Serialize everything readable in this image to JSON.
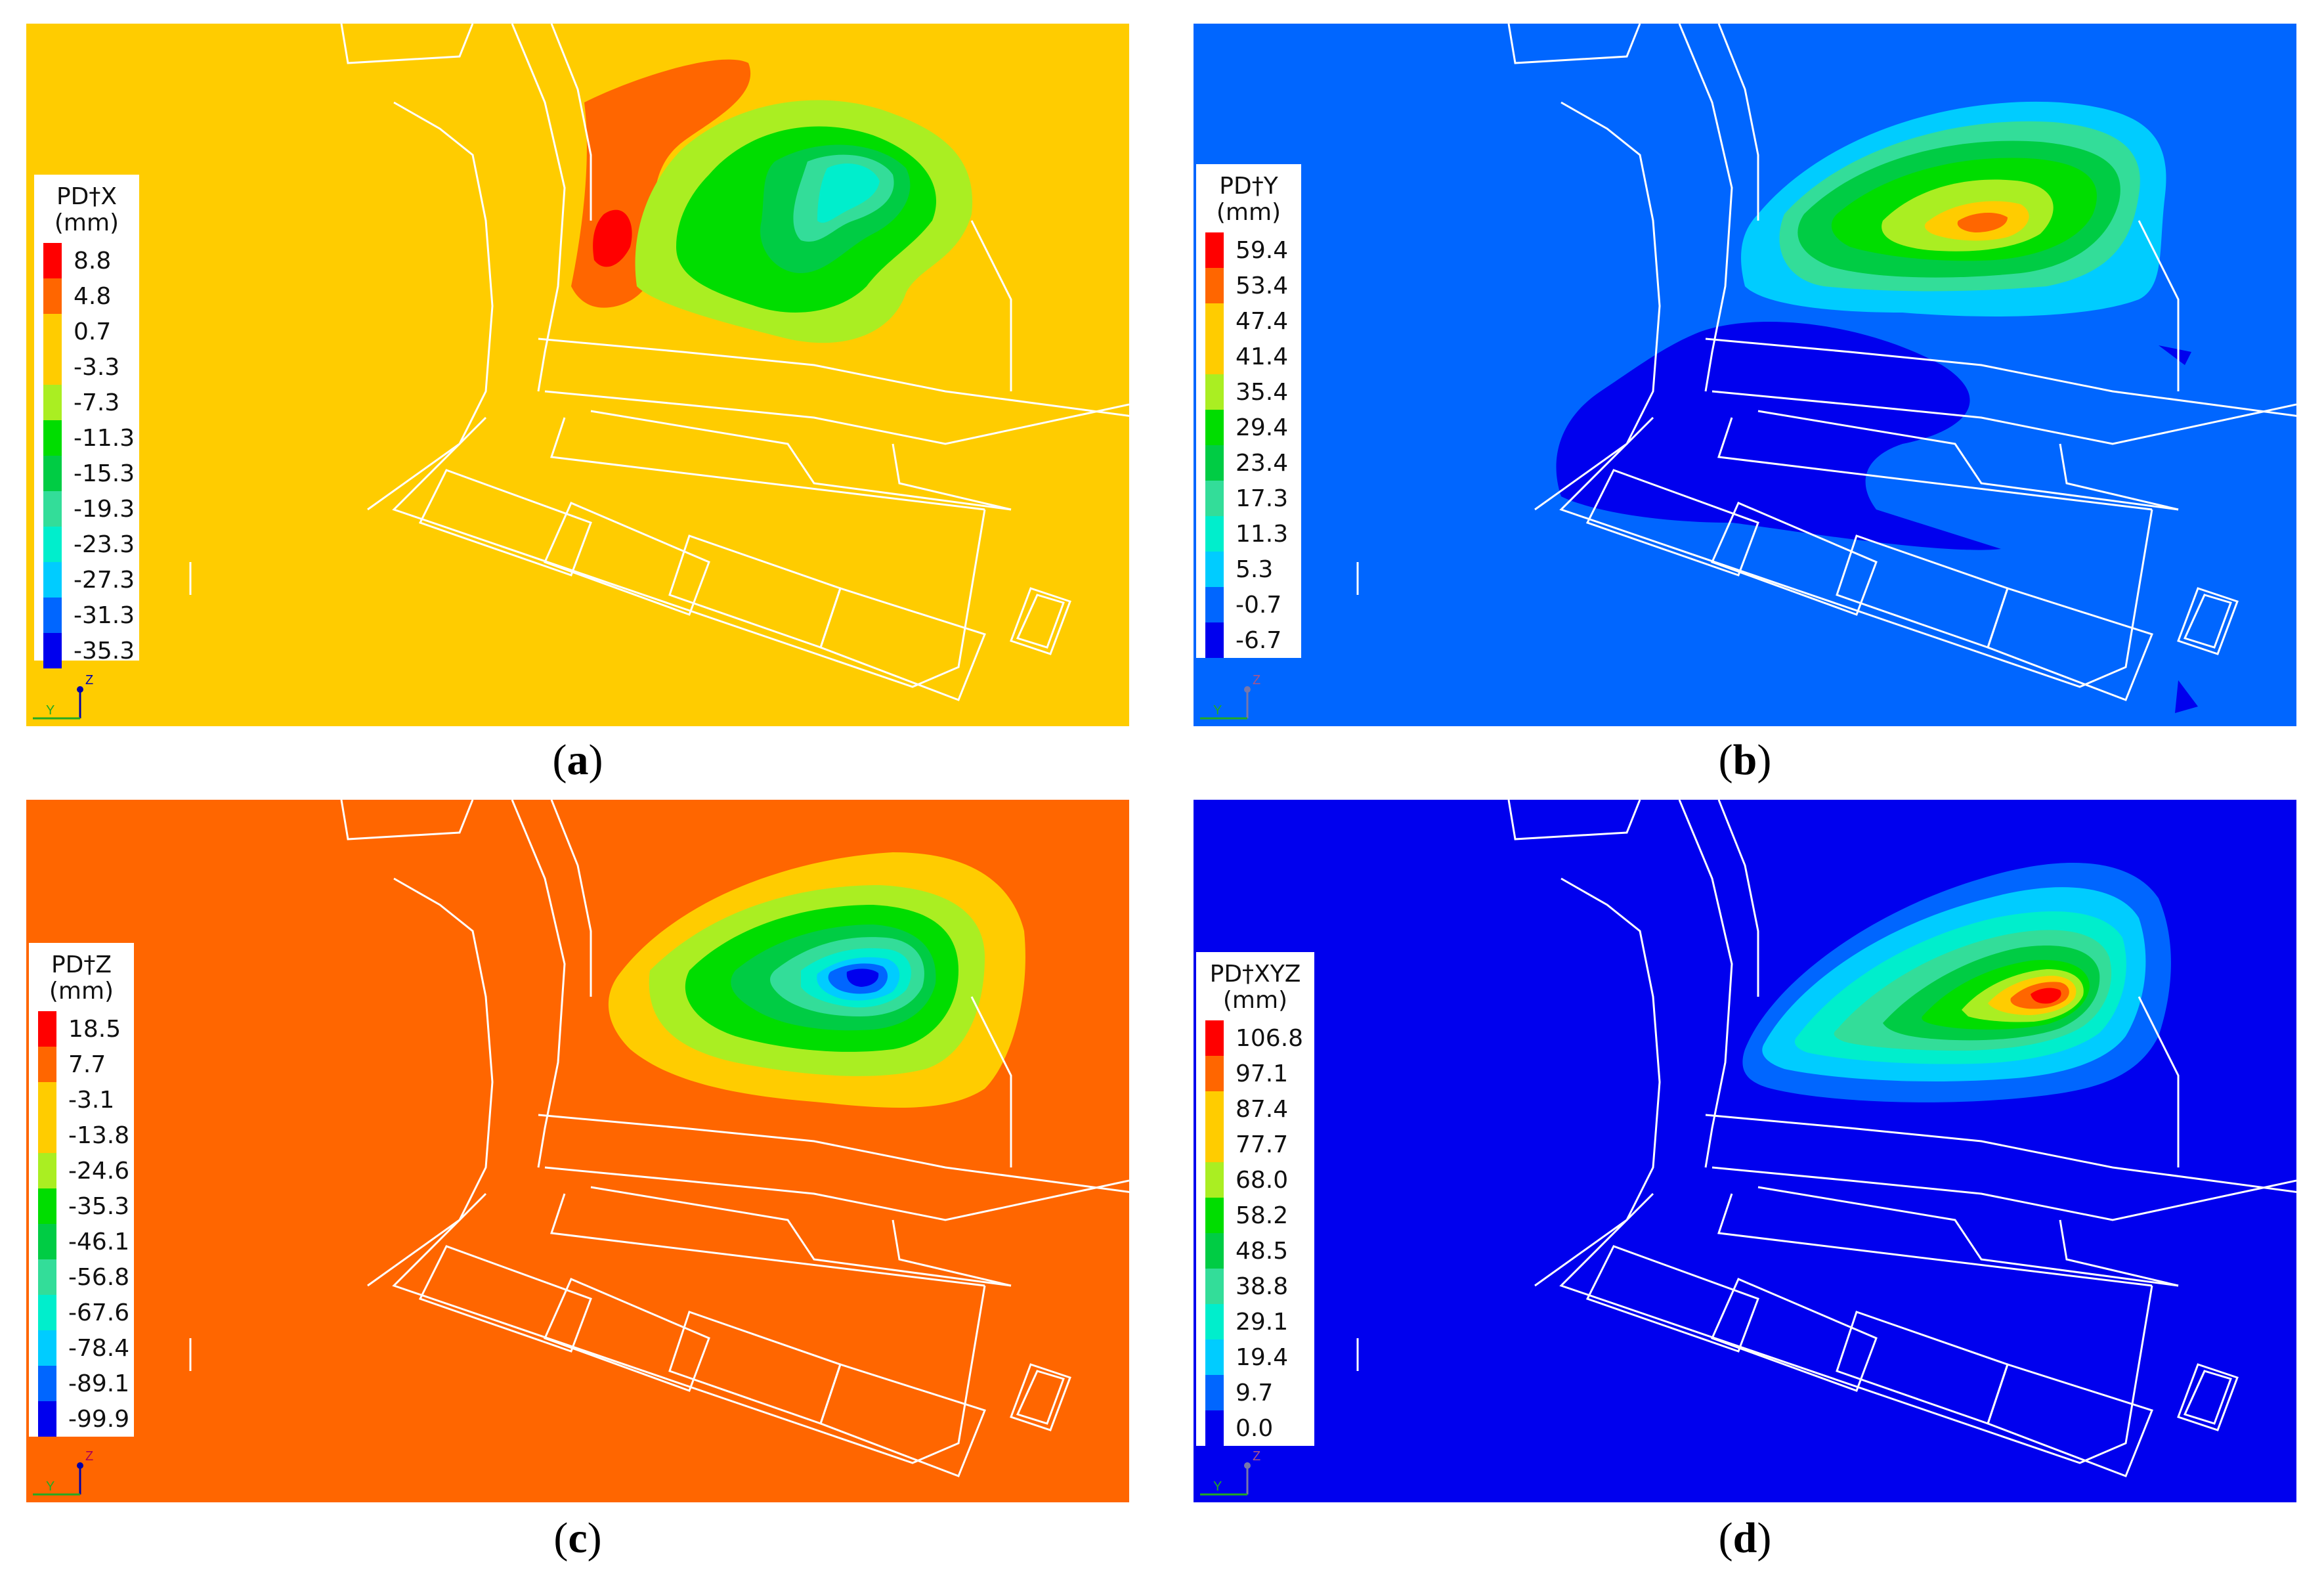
{
  "panels": [
    {
      "id": "a",
      "caption_letter": "a",
      "background": "#FFCC00",
      "legend": {
        "title": "PD†X",
        "unit": "(mm)",
        "values": [
          "8.8",
          "4.8",
          "0.7",
          "-3.3",
          "-7.3",
          "-11.3",
          "-15.3",
          "-19.3",
          "-23.3",
          "-27.3",
          "-31.3",
          "-35.3"
        ],
        "colors": [
          "#FF0000",
          "#FF6600",
          "#FFCC00",
          "#FFCC00",
          "#AAEE22",
          "#00DD00",
          "#00CC44",
          "#33DD99",
          "#00EECC",
          "#00CCFF",
          "#0066FF",
          "#0000EE"
        ]
      }
    },
    {
      "id": "b",
      "caption_letter": "b",
      "background": "#0066FF",
      "legend": {
        "title": "PD†Y",
        "unit": "(mm)",
        "values": [
          "59.4",
          "53.4",
          "47.4",
          "41.4",
          "35.4",
          "29.4",
          "23.4",
          "17.3",
          "11.3",
          "5.3",
          "-0.7",
          "-6.7"
        ],
        "colors": [
          "#FF0000",
          "#FF6600",
          "#FFCC00",
          "#FFCC00",
          "#AAEE22",
          "#00DD00",
          "#00CC44",
          "#33DD99",
          "#00EECC",
          "#00CCFF",
          "#0066FF",
          "#0000EE"
        ]
      }
    },
    {
      "id": "c",
      "caption_letter": "c",
      "background": "#FF6600",
      "legend": {
        "title": "PD†Z",
        "unit": "(mm)",
        "values": [
          "18.5",
          "7.7",
          "-3.1",
          "-13.8",
          "-24.6",
          "-35.3",
          "-46.1",
          "-56.8",
          "-67.6",
          "-78.4",
          "-89.1",
          "-99.9"
        ],
        "colors": [
          "#FF0000",
          "#FF6600",
          "#FFCC00",
          "#FFCC00",
          "#AAEE22",
          "#00DD00",
          "#00CC44",
          "#33DD99",
          "#00EECC",
          "#00CCFF",
          "#0066FF",
          "#0000EE"
        ]
      }
    },
    {
      "id": "d",
      "caption_letter": "d",
      "background": "#0000EE",
      "legend": {
        "title": "PD†XYZ",
        "unit": "(mm)",
        "values": [
          "106.8",
          "97.1",
          "87.4",
          "77.7",
          "68.0",
          "58.2",
          "48.5",
          "38.8",
          "29.1",
          "19.4",
          "9.7",
          "0.0"
        ],
        "colors": [
          "#FF0000",
          "#FF6600",
          "#FFCC00",
          "#FFCC00",
          "#AAEE22",
          "#00DD00",
          "#00CC44",
          "#33DD99",
          "#00EECC",
          "#00CCFF",
          "#0066FF",
          "#0000EE"
        ]
      }
    }
  ],
  "axis_triad": {
    "vertical": "Z",
    "horizontal": "Y"
  }
}
